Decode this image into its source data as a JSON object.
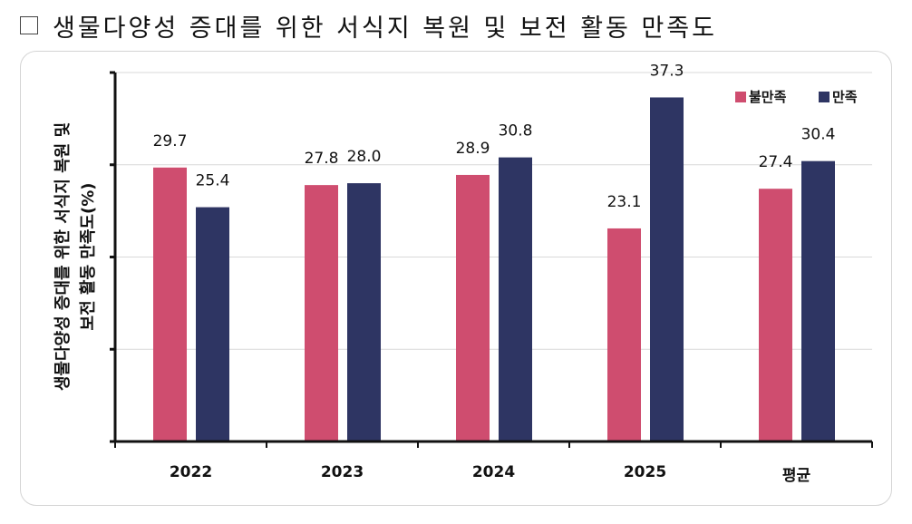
{
  "heading": {
    "marker": "□",
    "title": "생물다양성 증대를 위한 서식지 복원 및 보전 활동 만족도"
  },
  "chart_data": {
    "type": "bar",
    "categories": [
      "2022",
      "2023",
      "2024",
      "2025",
      "평균"
    ],
    "series": [
      {
        "name": "불만족",
        "color": "#cf4d6f",
        "values": [
          29.7,
          27.8,
          28.9,
          23.1,
          27.4
        ]
      },
      {
        "name": "만족",
        "color": "#2e3563",
        "values": [
          25.4,
          28.0,
          30.8,
          37.3,
          30.4
        ]
      }
    ],
    "value_labels": [
      [
        "29.7",
        "27.8",
        "28.9",
        "23.1",
        "27.4"
      ],
      [
        "25.4",
        "28.0",
        "30.8",
        "37.3",
        "30.4"
      ]
    ],
    "ylabel_lines": [
      "생물다양성 증대를 위한 서식지 복원 및",
      "보전 활동 만족도(%)"
    ],
    "ylim": [
      0,
      40
    ],
    "yticks": [
      0,
      10,
      20,
      30,
      40
    ],
    "grid": true,
    "legend_position": "top-right"
  }
}
